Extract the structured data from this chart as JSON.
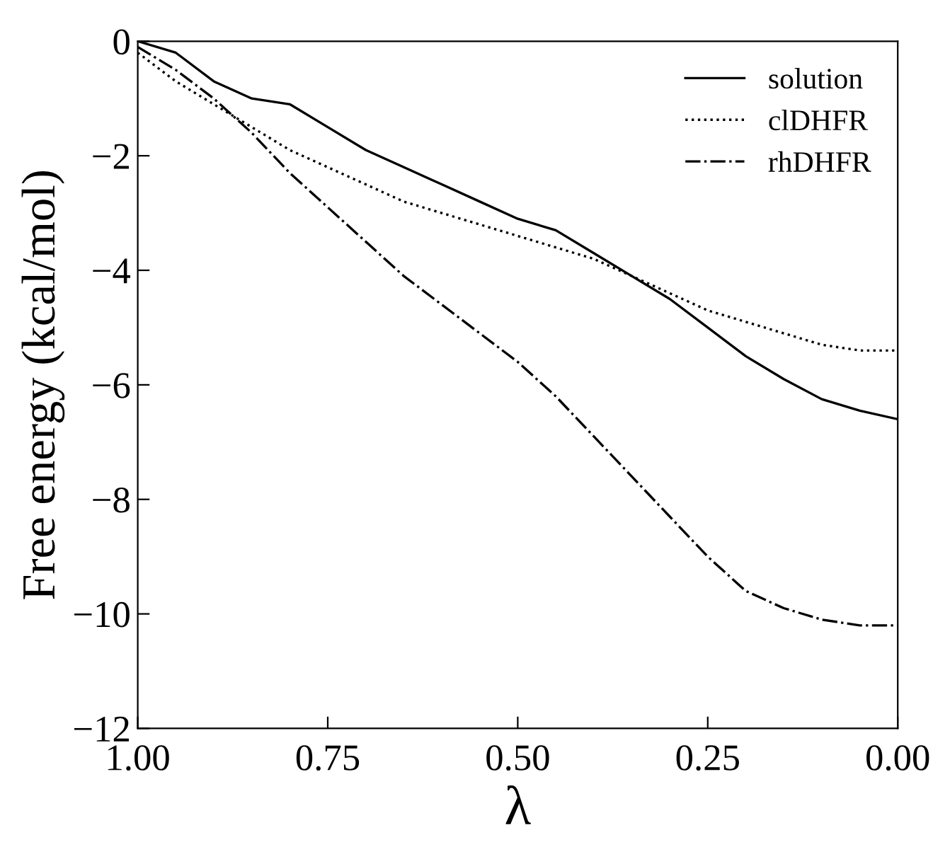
{
  "chart_data": {
    "type": "line",
    "xlabel": "λ",
    "ylabel": "Free energy (kcal/mol)",
    "x": [
      1.0,
      0.95,
      0.9,
      0.85,
      0.8,
      0.75,
      0.7,
      0.65,
      0.6,
      0.55,
      0.5,
      0.45,
      0.4,
      0.35,
      0.3,
      0.25,
      0.2,
      0.15,
      0.1,
      0.05,
      0.0
    ],
    "series": [
      {
        "name": "solution",
        "color": "#000000",
        "line_style": "solid",
        "values": [
          0,
          -0.2,
          -0.7,
          -1.0,
          -1.1,
          -1.5,
          -1.9,
          -2.2,
          -2.5,
          -2.8,
          -3.1,
          -3.3,
          -3.7,
          -4.1,
          -4.5,
          -5.0,
          -5.5,
          -5.9,
          -6.25,
          -6.45,
          -6.6
        ]
      },
      {
        "name": "clDHFR",
        "color": "#000000",
        "line_style": "dotted",
        "values": [
          -0.2,
          -0.7,
          -1.1,
          -1.5,
          -1.9,
          -2.2,
          -2.5,
          -2.8,
          -3.0,
          -3.2,
          -3.4,
          -3.6,
          -3.8,
          -4.1,
          -4.4,
          -4.7,
          -4.9,
          -5.1,
          -5.3,
          -5.4,
          -5.4
        ]
      },
      {
        "name": "rhDHFR",
        "color": "#000000",
        "line_style": "dashdot",
        "values": [
          -0.1,
          -0.5,
          -1.0,
          -1.6,
          -2.3,
          -2.9,
          -3.5,
          -4.1,
          -4.6,
          -5.1,
          -5.6,
          -6.2,
          -6.9,
          -7.6,
          -8.3,
          -9.0,
          -9.6,
          -9.9,
          -10.1,
          -10.2,
          -10.2
        ]
      }
    ],
    "xlim": [
      1.0,
      0.0
    ],
    "xticks": [
      {
        "value": 1.0,
        "label": "1.00"
      },
      {
        "value": 0.75,
        "label": "0.75"
      },
      {
        "value": 0.5,
        "label": "0.50"
      },
      {
        "value": 0.25,
        "label": "0.25"
      },
      {
        "value": 0.0,
        "label": "0.00"
      }
    ],
    "ylim": [
      -12,
      0
    ],
    "yticks": [
      -12,
      -10,
      -8,
      -6,
      -4,
      -2,
      0
    ],
    "grid": false,
    "legend": "top right",
    "marker": "none"
  }
}
